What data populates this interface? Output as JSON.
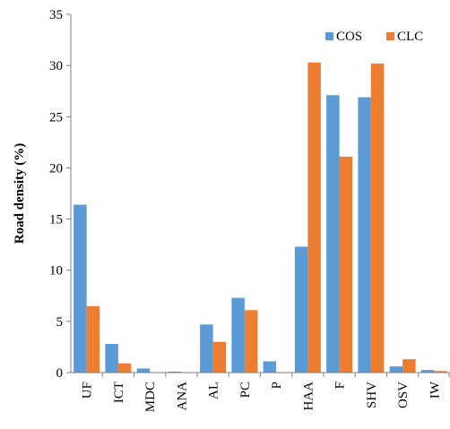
{
  "chart_data": {
    "type": "bar",
    "title": "",
    "xlabel": "",
    "ylabel": "Road  density (%)",
    "ylim": [
      0,
      35
    ],
    "yticks": [
      0,
      5,
      10,
      15,
      20,
      25,
      30,
      35
    ],
    "grid": false,
    "legend": "top-right",
    "categories": [
      "UF",
      "ICT",
      "MDC",
      "ANA",
      "AL",
      "PC",
      "P",
      "HAA",
      "F",
      "SHV",
      "OSV",
      "IW"
    ],
    "series": [
      {
        "name": "COS",
        "color": "#5b9bd5",
        "values": [
          16.4,
          2.8,
          0.4,
          0.1,
          4.7,
          7.3,
          1.1,
          12.3,
          27.1,
          26.9,
          0.6,
          0.25
        ]
      },
      {
        "name": "CLC",
        "color": "#ed7d31",
        "values": [
          6.5,
          0.9,
          0.0,
          0.0,
          3.0,
          6.1,
          0.0,
          30.3,
          21.1,
          30.2,
          1.3,
          0.15
        ]
      }
    ]
  }
}
